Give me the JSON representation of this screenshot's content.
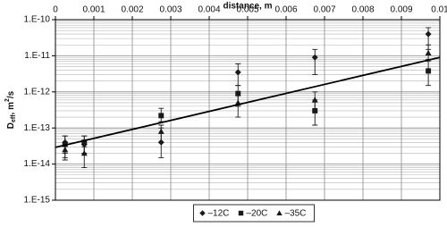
{
  "chart_data": {
    "type": "scatter",
    "x_label": "distance, m",
    "y_label": [
      "D",
      "eff",
      ", m",
      "2",
      "/s"
    ],
    "x": [
      0.00025,
      0.00075,
      0.00275,
      0.00475,
      0.00675,
      0.0097
    ],
    "xlim": [
      0,
      0.01
    ],
    "xticks": [
      0,
      0.001,
      0.002,
      0.003,
      0.004,
      0.005,
      0.006,
      0.007,
      0.008,
      0.009,
      0.01
    ],
    "ylim": [
      1e-15,
      1e-10
    ],
    "log_y": true,
    "yticks": [
      {
        "value": 1e-10,
        "label": "1.E-10"
      },
      {
        "value": 1e-11,
        "label": "1.E-11"
      },
      {
        "value": 1e-12,
        "label": "1.E-12"
      },
      {
        "value": 1e-13,
        "label": "1.E-13"
      },
      {
        "value": 1e-14,
        "label": "1.E-14"
      },
      {
        "value": 1e-15,
        "label": "1.E-15"
      }
    ],
    "grid": true,
    "legend": "bottom",
    "series": [
      {
        "name": "–12C",
        "marker": "diamond",
        "color": "#1a1a1a",
        "values": [
          4e-14,
          3.5e-14,
          4e-14,
          3.5e-12,
          9e-12,
          4e-11
        ],
        "error_low": [
          2e-14,
          2e-14,
          1.5e-14,
          1.5e-12,
          3e-12,
          1.5e-11
        ],
        "error_high": [
          6e-14,
          6e-14,
          1e-13,
          6e-12,
          1.5e-11,
          6e-11
        ]
      },
      {
        "name": "–20C",
        "marker": "square",
        "color": "#1a1a1a",
        "values": [
          3.5e-14,
          4e-14,
          2.2e-13,
          9e-13,
          3e-13,
          3.8e-12
        ],
        "error_low": [
          1.3e-14,
          2e-14,
          1.5e-13,
          4e-13,
          1.2e-13,
          1.5e-12
        ],
        "error_high": [
          6e-14,
          6e-14,
          3.5e-13,
          1.5e-12,
          6e-13,
          7e-12
        ]
      },
      {
        "name": "–35C",
        "marker": "triangle",
        "color": "#1a1a1a",
        "values": [
          2.5e-14,
          2e-14,
          8e-14,
          5e-13,
          6e-13,
          1.2e-11
        ],
        "error_low": [
          1.5e-14,
          8e-15,
          4e-14,
          2e-13,
          3e-13,
          8e-12
        ],
        "error_high": [
          4e-14,
          3e-14,
          1.2e-13,
          8e-13,
          1e-12,
          2e-11
        ]
      }
    ],
    "trendline": {
      "x": [
        0,
        0.01
      ],
      "values": [
        2.9e-14,
        9e-12
      ],
      "color": "#000000"
    }
  }
}
